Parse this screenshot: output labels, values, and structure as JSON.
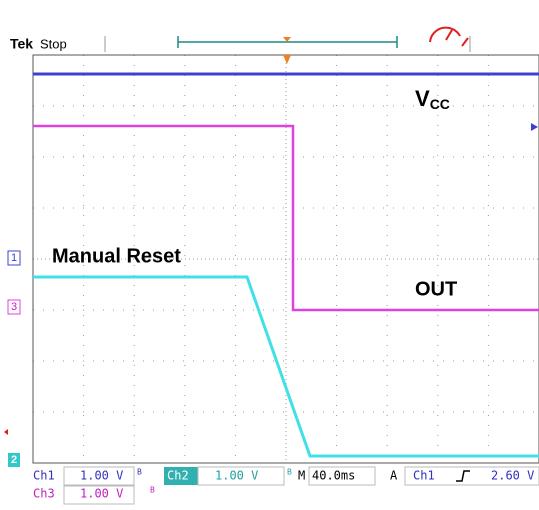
{
  "header": {
    "brand": "Tek",
    "status": "Stop"
  },
  "annotations": {
    "vcc_main": "V",
    "vcc_sub": "CC",
    "manual_reset": "Manual Reset",
    "out": "OUT"
  },
  "channel_markers": [
    "1",
    "3",
    "2"
  ],
  "status_bar": {
    "row1": {
      "ch1": "Ch1",
      "ch1_scale": "1.00 V",
      "ch1_bw": "B",
      "ch2": "Ch2",
      "ch2_scale": "1.00 V",
      "ch2_bw": "B",
      "time_prefix": "M",
      "timebase": "40.0ms",
      "trigger_mode": "A",
      "trigger_source": "Ch1",
      "trigger_level": "2.60 V"
    },
    "row2": {
      "ch3": "Ch3",
      "ch3_scale": "1.00 V",
      "ch3_bw": "B"
    }
  }
}
